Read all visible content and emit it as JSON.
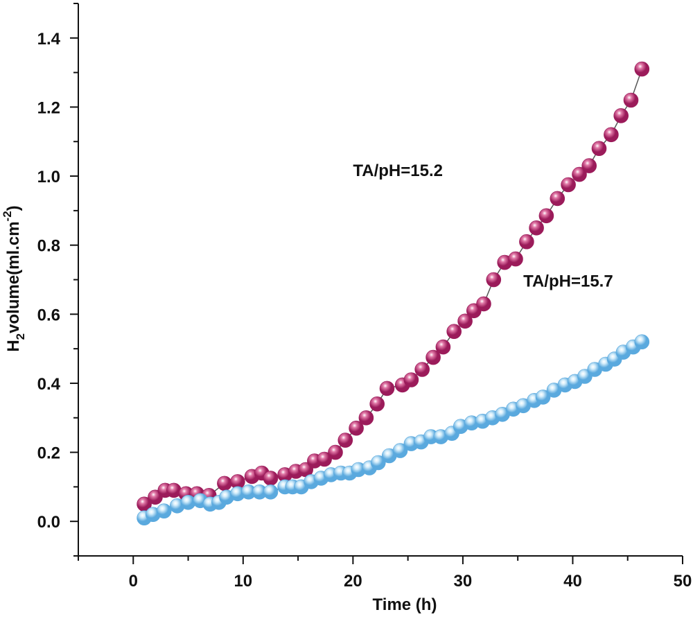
{
  "chart_data": {
    "type": "scatter",
    "title": "",
    "xlabel": "Time (h)",
    "ylabel": {
      "prefix": "H",
      "subscript": "2",
      "middle": "volume(ml.cm",
      "superscript": "-2",
      "suffix": ")"
    },
    "xlim": [
      -5,
      50
    ],
    "ylim": [
      -0.1,
      1.5
    ],
    "xticks": [
      0,
      10,
      20,
      30,
      40,
      50
    ],
    "xtick_labels": [
      "0",
      "10",
      "20",
      "30",
      "40",
      "50"
    ],
    "yticks": [
      0.0,
      0.2,
      0.4,
      0.6,
      0.8,
      1.0,
      1.2,
      1.4
    ],
    "ytick_labels": [
      "0.0",
      "0.2",
      "0.4",
      "0.6",
      "0.8",
      "1.0",
      "1.2",
      "1.4"
    ],
    "grid": false,
    "annotations": [
      {
        "text": "TA/pH=15.2",
        "x": 20,
        "y": 1.0
      },
      {
        "text": "TA/pH=15.7",
        "x": 35.5,
        "y": 0.68
      }
    ],
    "series": [
      {
        "name": "TA/pH=15.2",
        "color": "#9b1b5a",
        "highlight": "#e27aa8",
        "x": [
          1.0,
          2.0,
          2.9,
          3.7,
          4.8,
          5.8,
          6.9,
          8.3,
          9.5,
          10.8,
          11.7,
          12.5,
          13.8,
          14.8,
          15.7,
          16.5,
          17.4,
          18.4,
          19.3,
          20.3,
          21.2,
          22.2,
          23.1,
          24.5,
          25.3,
          26.3,
          27.3,
          28.2,
          29.2,
          30.2,
          31.0,
          31.9,
          32.8,
          33.8,
          34.8,
          35.8,
          36.7,
          37.6,
          38.6,
          39.6,
          40.6,
          41.5,
          42.4,
          43.5,
          44.4,
          45.3,
          46.3
        ],
        "y": [
          0.05,
          0.07,
          0.09,
          0.09,
          0.08,
          0.08,
          0.075,
          0.11,
          0.115,
          0.13,
          0.14,
          0.125,
          0.135,
          0.145,
          0.15,
          0.175,
          0.18,
          0.2,
          0.235,
          0.27,
          0.3,
          0.34,
          0.385,
          0.395,
          0.41,
          0.44,
          0.475,
          0.505,
          0.55,
          0.58,
          0.61,
          0.63,
          0.7,
          0.75,
          0.76,
          0.81,
          0.85,
          0.885,
          0.935,
          0.975,
          1.005,
          1.03,
          1.08,
          1.12,
          1.175,
          1.22,
          1.31
        ]
      },
      {
        "name": "TA/pH=15.7",
        "color": "#5aa9de",
        "highlight": "#d6eefb",
        "x": [
          1.0,
          1.8,
          2.8,
          4.0,
          5.0,
          6.1,
          7.0,
          7.8,
          8.5,
          9.5,
          10.5,
          11.5,
          12.5,
          13.8,
          14.5,
          15.3,
          16.2,
          17.1,
          18.0,
          18.9,
          19.7,
          20.5,
          21.5,
          22.3,
          23.3,
          24.3,
          25.3,
          26.2,
          27.1,
          28.0,
          29.0,
          29.8,
          30.8,
          31.8,
          32.7,
          33.6,
          34.6,
          35.5,
          36.5,
          37.3,
          38.3,
          39.3,
          40.2,
          41.1,
          42.0,
          43.0,
          43.8,
          44.6,
          45.5,
          46.3
        ],
        "y": [
          0.01,
          0.02,
          0.03,
          0.045,
          0.055,
          0.06,
          0.05,
          0.055,
          0.07,
          0.08,
          0.085,
          0.085,
          0.085,
          0.1,
          0.1,
          0.1,
          0.115,
          0.125,
          0.135,
          0.14,
          0.14,
          0.15,
          0.155,
          0.17,
          0.19,
          0.205,
          0.225,
          0.23,
          0.245,
          0.245,
          0.255,
          0.275,
          0.285,
          0.29,
          0.3,
          0.31,
          0.325,
          0.335,
          0.35,
          0.36,
          0.38,
          0.395,
          0.405,
          0.42,
          0.44,
          0.455,
          0.47,
          0.49,
          0.505,
          0.52
        ]
      }
    ]
  }
}
